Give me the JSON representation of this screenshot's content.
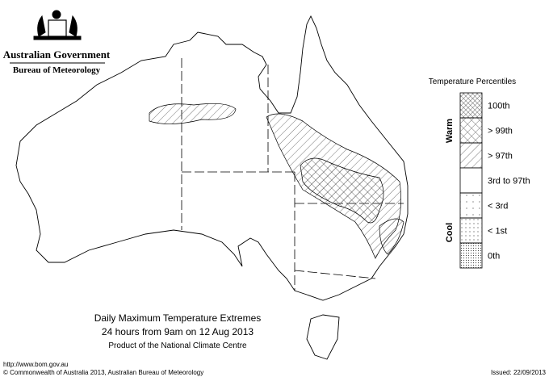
{
  "header": {
    "title": "Australian Government",
    "subtitle": "Bureau of Meteorology"
  },
  "legend": {
    "title": "Temperature Percentiles",
    "warm_label": "Warm",
    "cool_label": "Cool",
    "items": [
      "100th",
      "> 99th",
      "> 97th",
      "3rd to 97th",
      "< 3rd",
      "< 1st",
      "0th"
    ]
  },
  "caption": {
    "title": "Daily Maximum Temperature Extremes",
    "period": "24 hours from 9am on 12 Aug 2013",
    "product": "Product of the National Climate Centre"
  },
  "footer": {
    "url": "http://www.bom.gov.au",
    "copyright": "© Commonwealth of Australia 2013, Australian Bureau of Meteorology",
    "issued": "Issued: 22/09/2013"
  }
}
